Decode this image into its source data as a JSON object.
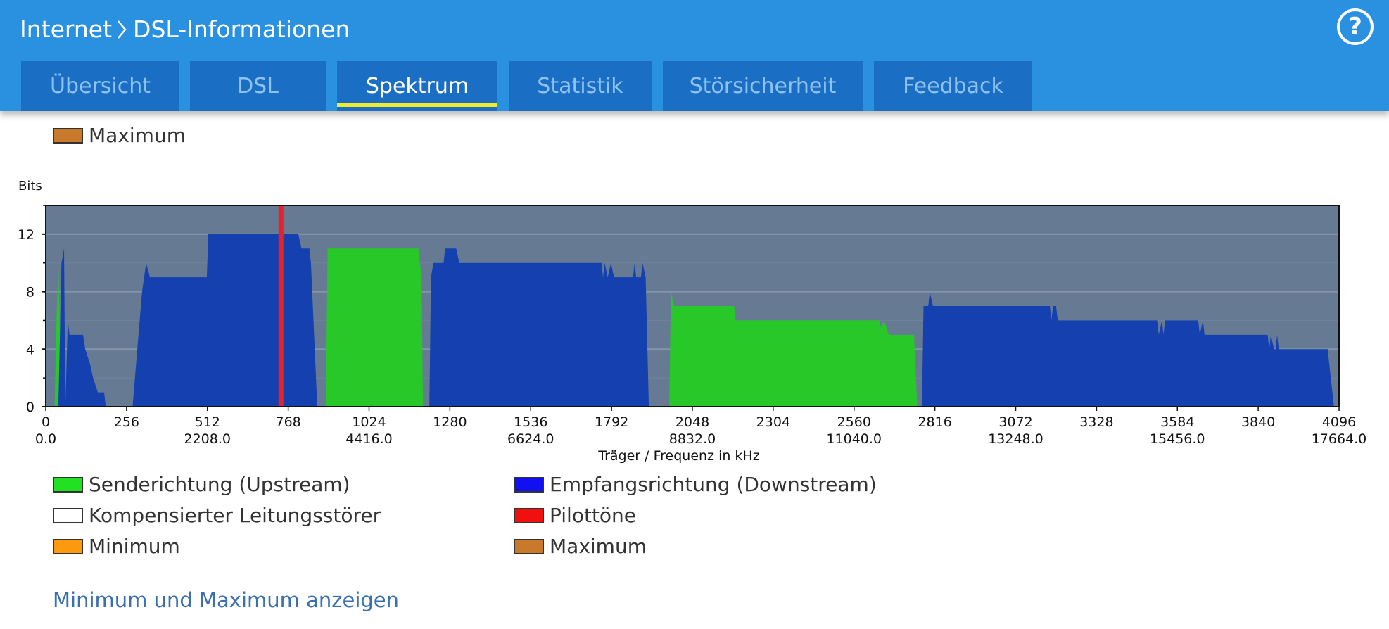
{
  "header": {
    "breadcrumb": [
      "Internet",
      "DSL-Informationen"
    ],
    "help_label": "?"
  },
  "tabs": [
    {
      "label": "Übersicht",
      "active": false
    },
    {
      "label": "DSL",
      "active": false
    },
    {
      "label": "Spektrum",
      "active": true
    },
    {
      "label": "Statistik",
      "active": false
    },
    {
      "label": "Störsicherheit",
      "active": false
    },
    {
      "label": "Feedback",
      "active": false
    }
  ],
  "top_legend": {
    "label": "Maximum",
    "color": "#c87a2a"
  },
  "legend": [
    {
      "label": "Senderichtung (Upstream)",
      "color": "#22e022"
    },
    {
      "label": "Empfangsrichtung (Downstream)",
      "color": "#1010f0"
    },
    {
      "label": "Kompensierter Leitungsstörer",
      "color": "#ffffff"
    },
    {
      "label": "Pilottöne",
      "color": "#f01010"
    },
    {
      "label": "Minimum",
      "color": "#ff9a10"
    },
    {
      "label": "Maximum",
      "color": "#c87a2a"
    }
  ],
  "link": {
    "label": "Minimum und Maximum anzeigen"
  },
  "chart_data": {
    "type": "area",
    "ylabel": "Bits",
    "xlabel": "Träger / Frequenz in kHz",
    "xlim": [
      0,
      4096
    ],
    "ylim": [
      0,
      14
    ],
    "yticks": [
      0,
      4,
      8,
      12
    ],
    "xticks_carrier": [
      "0",
      "256",
      "512",
      "768",
      "1024",
      "1280",
      "1536",
      "1792",
      "2048",
      "2304",
      "2560",
      "2816",
      "3072",
      "3328",
      "3584",
      "3840",
      "4096"
    ],
    "xticks_freq": [
      "0.0",
      "2208.0",
      "4416.0",
      "6624.0",
      "8832.0",
      "11040.0",
      "13248.0",
      "15456.0",
      "17664.0"
    ],
    "background": "#667b93",
    "series": [
      {
        "name": "Senderichtung (Upstream)",
        "color": "#28c828",
        "segments": [
          [
            [
              28,
              0
            ],
            [
              34,
              6
            ],
            [
              40,
              10
            ],
            [
              44,
              6
            ],
            [
              58,
              0
            ]
          ],
          [
            [
              887,
              0
            ],
            [
              893,
              11
            ],
            [
              1180,
              11
            ],
            [
              1190,
              9
            ],
            [
              1195,
              0
            ]
          ],
          [
            [
              1975,
              0
            ],
            [
              1980,
              8
            ],
            [
              1990,
              7
            ],
            [
              2180,
              7
            ],
            [
              2185,
              6
            ],
            [
              2640,
              6
            ],
            [
              2645,
              5.5
            ],
            [
              2655,
              6
            ],
            [
              2670,
              5
            ],
            [
              2750,
              5
            ],
            [
              2760,
              0
            ]
          ]
        ]
      },
      {
        "name": "Empfangsrichtung (Downstream)",
        "color": "#1440b0",
        "segments": [
          [
            [
              40,
              0
            ],
            [
              50,
              10
            ],
            [
              58,
              11
            ],
            [
              62,
              0
            ]
          ],
          [
            [
              62,
              0
            ],
            [
              70,
              6
            ],
            [
              75,
              5
            ],
            [
              118,
              5
            ],
            [
              125,
              4
            ],
            [
              140,
              3
            ],
            [
              150,
              2
            ],
            [
              165,
              1
            ],
            [
              185,
              1
            ],
            [
              190,
              0
            ]
          ],
          [
            [
              275,
              0
            ],
            [
              290,
              4
            ],
            [
              305,
              8
            ],
            [
              318,
              10
            ],
            [
              330,
              9
            ],
            [
              510,
              9
            ],
            [
              515,
              12
            ],
            [
              800,
              12
            ],
            [
              810,
              11
            ],
            [
              835,
              11
            ],
            [
              840,
              10
            ],
            [
              860,
              0
            ]
          ],
          [
            [
              1215,
              0
            ],
            [
              1220,
              9
            ],
            [
              1228,
              10
            ],
            [
              1260,
              10
            ],
            [
              1265,
              11
            ],
            [
              1300,
              11
            ],
            [
              1310,
              10
            ],
            [
              1760,
              10
            ],
            [
              1765,
              9
            ],
            [
              1770,
              10
            ],
            [
              1780,
              9
            ],
            [
              1790,
              10
            ],
            [
              1800,
              9
            ],
            [
              1860,
              9
            ],
            [
              1865,
              10
            ],
            [
              1870,
              9
            ],
            [
              1885,
              9
            ],
            [
              1890,
              10
            ],
            [
              1900,
              9
            ],
            [
              1910,
              0
            ]
          ],
          [
            [
              2775,
              0
            ],
            [
              2780,
              7
            ],
            [
              2795,
              7
            ],
            [
              2800,
              8
            ],
            [
              2810,
              7
            ],
            [
              3180,
              7
            ],
            [
              3185,
              6
            ],
            [
              3190,
              7
            ],
            [
              3200,
              7
            ],
            [
              3205,
              6
            ],
            [
              3520,
              6
            ],
            [
              3525,
              5
            ],
            [
              3535,
              6
            ],
            [
              3540,
              5
            ],
            [
              3545,
              6
            ],
            [
              3650,
              6
            ],
            [
              3655,
              5
            ],
            [
              3665,
              6
            ],
            [
              3670,
              5
            ],
            [
              3870,
              5
            ],
            [
              3875,
              4
            ],
            [
              3880,
              5
            ],
            [
              3890,
              4
            ],
            [
              3895,
              4
            ],
            [
              3900,
              5
            ],
            [
              3905,
              4
            ],
            [
              4060,
              4
            ],
            [
              4070,
              2
            ],
            [
              4080,
              0
            ]
          ]
        ]
      },
      {
        "name": "Pilottöne",
        "color": "#e8202a",
        "pilot_carrier": 745
      }
    ]
  }
}
